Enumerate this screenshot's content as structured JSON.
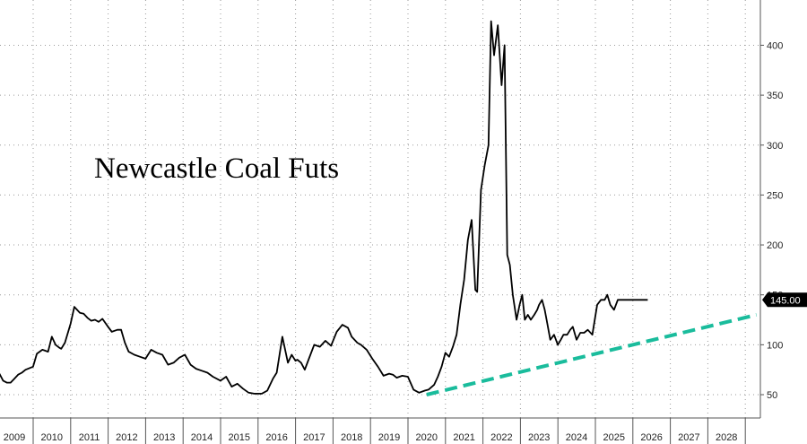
{
  "chart_data": {
    "type": "line",
    "title": "Newcastle Coal Futs",
    "xlabel": "",
    "ylabel": "",
    "x_ticks": [
      "2009",
      "2010",
      "2011",
      "2012",
      "2013",
      "2014",
      "2015",
      "2016",
      "2017",
      "2018",
      "2019",
      "2020",
      "2021",
      "2022",
      "2023",
      "2024",
      "2025",
      "2026",
      "2027",
      "2028"
    ],
    "y_ticks": [
      50,
      100,
      150,
      200,
      250,
      300,
      350,
      400
    ],
    "xlim": [
      2009.0,
      2029.0
    ],
    "ylim": [
      30,
      430
    ],
    "grid": true,
    "y_axis_side": "right",
    "last_value": 145,
    "last_value_label": "145.00",
    "series": [
      {
        "color": "#000000",
        "x": [
          2008.5,
          2008.6,
          2008.7,
          2008.8,
          2008.9,
          2009.0,
          2009.1,
          2009.2,
          2009.3,
          2009.5,
          2009.6,
          2009.75,
          2009.9,
          2010.0,
          2010.1,
          2010.2,
          2010.25,
          2010.35,
          2010.5,
          2010.6,
          2010.75,
          2010.85,
          2010.95,
          2011.05,
          2011.15,
          2011.25,
          2011.35,
          2011.5,
          2011.6,
          2011.75,
          2011.85,
          2011.95,
          2012.05,
          2012.2,
          2012.35,
          2012.5,
          2012.65,
          2012.8,
          2012.95,
          2013.1,
          2013.25,
          2013.4,
          2013.55,
          2013.7,
          2013.85,
          2014.0,
          2014.15,
          2014.3,
          2014.5,
          2014.65,
          2014.8,
          2014.95,
          2015.1,
          2015.25,
          2015.4,
          2015.6,
          2015.75,
          2015.9,
          2016.0,
          2016.15,
          2016.3,
          2016.4,
          2016.5,
          2016.55,
          2016.65,
          2016.75,
          2016.85,
          2017.0,
          2017.15,
          2017.3,
          2017.45,
          2017.6,
          2017.75,
          2017.9,
          2018.0,
          2018.15,
          2018.25,
          2018.4,
          2018.55,
          2018.7,
          2018.85,
          2019.0,
          2019.1,
          2019.2,
          2019.35,
          2019.5,
          2019.65,
          2019.8,
          2019.95,
          2020.05,
          2020.2,
          2020.3,
          2020.4,
          2020.5,
          2020.6,
          2020.7,
          2020.8,
          2020.9,
          2021.0,
          2021.1,
          2021.2,
          2021.3,
          2021.35,
          2021.45,
          2021.55,
          2021.65,
          2021.72,
          2021.8,
          2021.9,
          2022.0,
          2022.08,
          2022.15,
          2022.22,
          2022.3,
          2022.4,
          2022.48,
          2022.55,
          2022.62,
          2022.7,
          2022.78,
          2022.87,
          2022.95,
          2023.0,
          2023.08,
          2023.15,
          2023.2,
          2023.3,
          2023.4,
          2023.5,
          2023.58,
          2023.65,
          2023.75,
          2023.83,
          2023.9,
          2024.0,
          2024.1,
          2024.2,
          2024.3,
          2024.42,
          2024.55,
          2024.65,
          2024.75,
          2024.82,
          2024.9,
          2025.0,
          2025.1,
          2025.2,
          2025.3,
          2025.4,
          2025.5,
          2025.6,
          2025.7,
          2025.75,
          2025.8,
          2025.85,
          2025.9
        ],
        "values": [
          80,
          71,
          64,
          62,
          62,
          66,
          70,
          72,
          75,
          78,
          91,
          95,
          93,
          108,
          100,
          97,
          96,
          102,
          121,
          138,
          132,
          131,
          127,
          124,
          125,
          123,
          126,
          118,
          113,
          115,
          115,
          102,
          93,
          90,
          88,
          86,
          95,
          92,
          90,
          80,
          82,
          87,
          90,
          80,
          76,
          74,
          72,
          68,
          64,
          68,
          58,
          61,
          56,
          52,
          51,
          51,
          54,
          66,
          72,
          108,
          82,
          90,
          84,
          85,
          82,
          75,
          85,
          100,
          98,
          104,
          99,
          113,
          120,
          117,
          108,
          102,
          100,
          95,
          86,
          78,
          69,
          71,
          70,
          67,
          69,
          68,
          55,
          52,
          54,
          55,
          60,
          68,
          78,
          92,
          88,
          98,
          110,
          140,
          165,
          205,
          225,
          155,
          153,
          255,
          280,
          300,
          424,
          390,
          420,
          360,
          400,
          190,
          180,
          150,
          125,
          140,
          150,
          125,
          130,
          125,
          130,
          135,
          140,
          145,
          135,
          125,
          105,
          110,
          100,
          105,
          110,
          110,
          115,
          118,
          105,
          112,
          112,
          115,
          110,
          140,
          145,
          145,
          150,
          140,
          135,
          145,
          145,
          145,
          145,
          145,
          145,
          145,
          145,
          145,
          145,
          145
        ]
      },
      {
        "color": "#1abc9c",
        "style": "dashed",
        "x": [
          2020.0,
          2028.8
        ],
        "values": [
          50,
          130
        ]
      }
    ]
  }
}
